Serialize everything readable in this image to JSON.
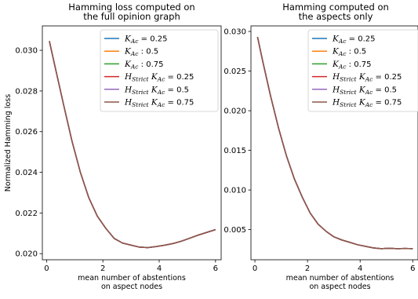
{
  "chart_data": [
    {
      "type": "line",
      "title_lines": [
        "Hamming loss computed on",
        "the full opinion graph"
      ],
      "xlabel_lines": [
        "mean number of abstentions",
        "on aspect nodes"
      ],
      "ylabel": "Normalized Hamming loss",
      "xlim": [
        -0.15,
        6.2
      ],
      "ylim": [
        0.0197,
        0.0312
      ],
      "xticks": [
        0,
        2,
        4,
        6
      ],
      "xtick_labels": [
        "0",
        "2",
        "4",
        "6"
      ],
      "yticks": [
        0.02,
        0.022,
        0.024,
        0.026,
        0.028,
        0.03
      ],
      "ytick_labels": [
        "0.020",
        "0.022",
        "0.024",
        "0.026",
        "0.028",
        "0.030"
      ],
      "grid": false,
      "legend_position": "top-right",
      "x": [
        0.1,
        0.3,
        0.6,
        0.9,
        1.2,
        1.5,
        1.8,
        2.1,
        2.4,
        2.7,
        3.0,
        3.3,
        3.6,
        3.9,
        4.2,
        4.5,
        4.8,
        5.1,
        5.4,
        5.7,
        6.0
      ],
      "series": [
        {
          "name": "K_Ac = 0.25",
          "values": [
            0.03045,
            0.0292,
            0.02735,
            0.02555,
            0.024,
            0.02275,
            0.02185,
            0.02125,
            0.02075,
            0.02052,
            0.02042,
            0.02032,
            0.0203,
            0.02035,
            0.02042,
            0.0205,
            0.02062,
            0.02077,
            0.02092,
            0.02105,
            0.02118
          ]
        },
        {
          "name": "K_Ac : 0.5",
          "values": [
            0.03045,
            0.0292,
            0.02735,
            0.02555,
            0.024,
            0.02275,
            0.02185,
            0.02125,
            0.02075,
            0.02052,
            0.02042,
            0.02032,
            0.0203,
            0.02035,
            0.02042,
            0.0205,
            0.02062,
            0.02077,
            0.02092,
            0.02105,
            0.02118
          ]
        },
        {
          "name": "K_Ac : 0.75",
          "values": [
            0.03045,
            0.0292,
            0.02735,
            0.02555,
            0.024,
            0.02275,
            0.02185,
            0.02125,
            0.02075,
            0.02052,
            0.02042,
            0.02032,
            0.0203,
            0.02035,
            0.02042,
            0.0205,
            0.02062,
            0.02077,
            0.02092,
            0.02105,
            0.02118
          ]
        },
        {
          "name": "H_Strict K_Ac = 0.25",
          "values": [
            0.03045,
            0.0292,
            0.02735,
            0.02555,
            0.024,
            0.02275,
            0.02185,
            0.02125,
            0.02075,
            0.02052,
            0.02042,
            0.02032,
            0.0203,
            0.02035,
            0.02042,
            0.0205,
            0.02062,
            0.02077,
            0.02092,
            0.02105,
            0.02118
          ]
        },
        {
          "name": "H_Strict K_Ac = 0.5",
          "values": [
            0.03045,
            0.0292,
            0.02735,
            0.02555,
            0.024,
            0.02275,
            0.02185,
            0.02125,
            0.02075,
            0.02052,
            0.02042,
            0.02032,
            0.0203,
            0.02035,
            0.02042,
            0.0205,
            0.02062,
            0.02077,
            0.02092,
            0.02105,
            0.02118
          ]
        },
        {
          "name": "H_Strict K_Ac = 0.75",
          "values": [
            0.03045,
            0.0292,
            0.02735,
            0.02555,
            0.024,
            0.02275,
            0.02185,
            0.02125,
            0.02075,
            0.02052,
            0.02042,
            0.02032,
            0.0203,
            0.02035,
            0.02042,
            0.0205,
            0.02062,
            0.02077,
            0.02092,
            0.02105,
            0.02118
          ]
        }
      ]
    },
    {
      "type": "line",
      "title_lines": [
        "Hamming computed on",
        "the aspects only"
      ],
      "xlabel_lines": [
        "mean number of abstentions",
        "on aspect nodes"
      ],
      "ylabel": "",
      "xlim": [
        -0.15,
        6.2
      ],
      "ylim": [
        0.0012,
        0.0307
      ],
      "xticks": [
        0,
        2,
        4,
        6
      ],
      "xtick_labels": [
        "0",
        "2",
        "4",
        "6"
      ],
      "yticks": [
        0.005,
        0.01,
        0.015,
        0.02,
        0.025,
        0.03
      ],
      "ytick_labels": [
        "0.005",
        "0.010",
        "0.015",
        "0.020",
        "0.025",
        "0.030"
      ],
      "grid": false,
      "legend_position": "top-right",
      "x": [
        0.1,
        0.3,
        0.6,
        0.9,
        1.2,
        1.5,
        1.8,
        2.1,
        2.4,
        2.7,
        3.0,
        3.3,
        3.6,
        3.9,
        4.2,
        4.5,
        4.8,
        5.1,
        5.4,
        5.7,
        6.0
      ],
      "series": [
        {
          "name": "K_Ac = 0.25",
          "values": [
            0.0293,
            0.0262,
            0.0218,
            0.0178,
            0.0143,
            0.0114,
            0.0091,
            0.0071,
            0.0057,
            0.0048,
            0.0041,
            0.0037,
            0.0034,
            0.0031,
            0.0029,
            0.0027,
            0.0026,
            0.00265,
            0.0026,
            0.00262,
            0.0026
          ]
        },
        {
          "name": "K_Ac : 0.5",
          "values": [
            0.0293,
            0.0262,
            0.0218,
            0.0178,
            0.0143,
            0.0114,
            0.0091,
            0.0071,
            0.0057,
            0.0048,
            0.0041,
            0.0037,
            0.0034,
            0.0031,
            0.0029,
            0.0027,
            0.0026,
            0.00265,
            0.0026,
            0.00262,
            0.0026
          ]
        },
        {
          "name": "K_Ac : 0.75",
          "values": [
            0.0293,
            0.0262,
            0.0218,
            0.0178,
            0.0143,
            0.0114,
            0.0091,
            0.0071,
            0.0057,
            0.0048,
            0.0041,
            0.0037,
            0.0034,
            0.0031,
            0.0029,
            0.0027,
            0.0026,
            0.00265,
            0.0026,
            0.00262,
            0.0026
          ]
        },
        {
          "name": "H_Strict K_Ac = 0.25",
          "values": [
            0.0293,
            0.0262,
            0.0218,
            0.0178,
            0.0143,
            0.0114,
            0.0091,
            0.0071,
            0.0057,
            0.0048,
            0.0041,
            0.0037,
            0.0034,
            0.0031,
            0.0029,
            0.0027,
            0.0026,
            0.00265,
            0.0026,
            0.00262,
            0.0026
          ]
        },
        {
          "name": "H_Strict K_Ac = 0.5",
          "values": [
            0.0293,
            0.0262,
            0.0218,
            0.0178,
            0.0143,
            0.0114,
            0.0091,
            0.0071,
            0.0057,
            0.0048,
            0.0041,
            0.0037,
            0.0034,
            0.0031,
            0.0029,
            0.0027,
            0.0026,
            0.00265,
            0.0026,
            0.00262,
            0.0026
          ]
        },
        {
          "name": "H_Strict K_Ac = 0.75",
          "values": [
            0.0293,
            0.0262,
            0.0218,
            0.0178,
            0.0143,
            0.0114,
            0.0091,
            0.0071,
            0.0057,
            0.0048,
            0.0041,
            0.0037,
            0.0034,
            0.0031,
            0.0029,
            0.0027,
            0.0026,
            0.00265,
            0.0026,
            0.00262,
            0.0026
          ]
        }
      ]
    }
  ],
  "legend": {
    "entries": [
      {
        "sym": "K",
        "sub": "Ac",
        "pre": "",
        "tail": " = 0.25",
        "color": "#1f77b4"
      },
      {
        "sym": "K",
        "sub": "Ac",
        "pre": "",
        "tail": " : 0.5",
        "color": "#ff7f0e"
      },
      {
        "sym": "K",
        "sub": "Ac",
        "pre": "",
        "tail": " : 0.75",
        "color": "#2ca02c"
      },
      {
        "sym": "K",
        "sub": "Ac",
        "pre": "H",
        "presub": "Strict",
        "tail": " = 0.25",
        "color": "#d62728"
      },
      {
        "sym": "K",
        "sub": "Ac",
        "pre": "H",
        "presub": "Strict",
        "tail": " = 0.5",
        "color": "#9467bd"
      },
      {
        "sym": "K",
        "sub": "Ac",
        "pre": "H",
        "presub": "Strict",
        "tail": " = 0.75",
        "color": "#8c564b"
      }
    ]
  }
}
